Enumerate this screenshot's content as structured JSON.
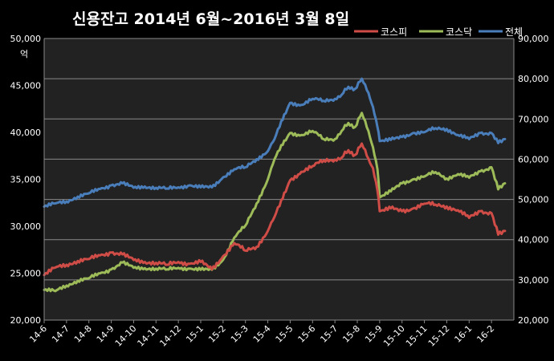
{
  "chart_data": {
    "type": "line",
    "title": "신용잔고 2014년 6월~2016년 3월 8일",
    "y_unit": "억",
    "x_tick_labels": [
      "14-6",
      "14-7",
      "14-8",
      "14-9",
      "14-10",
      "14-11",
      "14-12",
      "15-1",
      "15-2",
      "15-3",
      "15-4",
      "15-5",
      "15-6",
      "15-7",
      "15-8",
      "15-9",
      "15-10",
      "15-11",
      "15-12",
      "16-1",
      "16-2"
    ],
    "left_axis": {
      "ticks": [
        20000,
        25000,
        30000,
        35000,
        40000,
        45000,
        50000
      ],
      "tick_labels": [
        "20,000",
        "25,000",
        "30,000",
        "35,000",
        "40,000",
        "45,000",
        "50,000"
      ],
      "ylim": [
        20000,
        50000
      ]
    },
    "right_axis": {
      "ticks": [
        20000,
        30000,
        40000,
        50000,
        60000,
        70000,
        80000,
        90000
      ],
      "tick_labels": [
        "20,000",
        "30,000",
        "40,000",
        "50,000",
        "60,000",
        "70,000",
        "80,000",
        "90,000"
      ],
      "ylim": [
        20000,
        90000
      ]
    },
    "legend_position": "top-right",
    "grid": "horizontal",
    "x_index": [
      0,
      0.5,
      1,
      1.5,
      2,
      2.5,
      3,
      3.5,
      4,
      4.5,
      5,
      5.5,
      6,
      6.5,
      7,
      7.5,
      8,
      8.5,
      9,
      9.5,
      10,
      10.3,
      10.6,
      11,
      11.5,
      12,
      12.5,
      13,
      13.3,
      13.6,
      13.9,
      14.2,
      14.5,
      14.7,
      14.9,
      15,
      15.5,
      16,
      16.5,
      17,
      17.5,
      18,
      18.5,
      19,
      19.5,
      20,
      20.3,
      20.6
    ],
    "series": [
      {
        "name": "코스피",
        "color": "#cf4c47",
        "axis": "left",
        "values": [
          24800,
          25600,
          25900,
          26300,
          26500,
          26900,
          27200,
          27000,
          26400,
          26200,
          26100,
          25900,
          26200,
          26000,
          26200,
          25400,
          26800,
          28200,
          27400,
          27800,
          29500,
          31000,
          32800,
          34900,
          35800,
          36400,
          37000,
          37100,
          37300,
          38100,
          37600,
          38800,
          37200,
          36200,
          33800,
          31600,
          31900,
          31600,
          31900,
          32400,
          32300,
          32100,
          31700,
          30900,
          31600,
          31400,
          29100,
          29500
        ]
      },
      {
        "name": "코스닥",
        "color": "#9dbb58",
        "axis": "right",
        "values": [
          27500,
          27200,
          28600,
          29800,
          30400,
          31600,
          32600,
          34300,
          33000,
          32900,
          32800,
          32600,
          33000,
          32800,
          32500,
          32500,
          35000,
          40500,
          43500,
          49000,
          55000,
          60000,
          63500,
          66500,
          66000,
          67000,
          65000,
          65000,
          67000,
          69000,
          68000,
          71500,
          67000,
          63000,
          57500,
          50500,
          52000,
          54000,
          55000,
          55700,
          56800,
          55200,
          56300,
          55400,
          57000,
          58000,
          52500,
          54000
        ]
      },
      {
        "name": "전체",
        "color": "#4a7ebb",
        "axis": "right",
        "values": [
          48200,
          49000,
          49500,
          50700,
          51500,
          52600,
          53500,
          54000,
          52900,
          53200,
          52900,
          52700,
          53000,
          53500,
          53000,
          53000,
          55500,
          57500,
          58000,
          60000,
          62000,
          65000,
          69500,
          74000,
          73500,
          75000,
          74500,
          75000,
          76000,
          78000,
          77500,
          80000,
          76500,
          73000,
          68000,
          64500,
          64800,
          65500,
          66500,
          66700,
          67700,
          67500,
          66000,
          65000,
          66500,
          66500,
          64000,
          65000
        ]
      }
    ]
  }
}
